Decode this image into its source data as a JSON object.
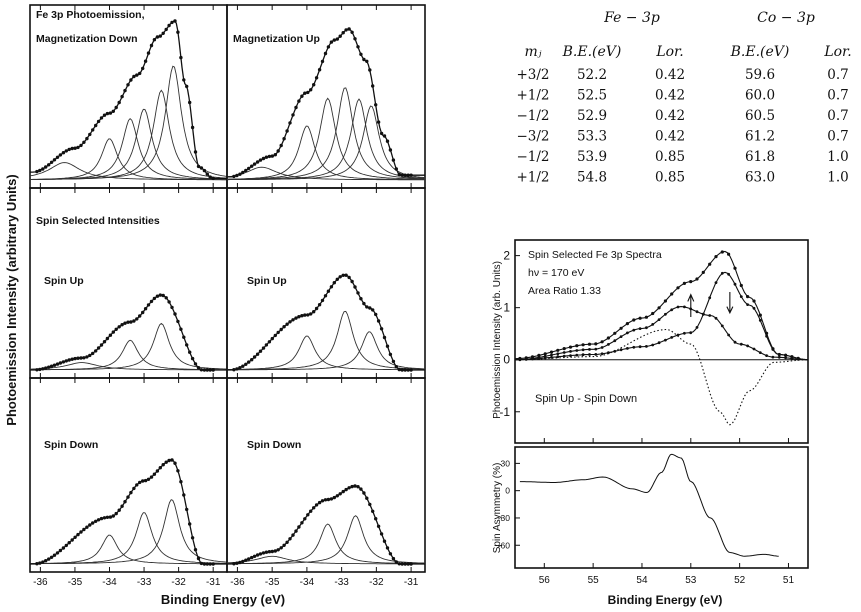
{
  "left_figure": {
    "ylabel": "Photoemission Intensity (arbitrary Units)",
    "xlabel": "Binding Energy (eV)",
    "xticks": [
      "-36",
      "-35",
      "-34",
      "-33",
      "-32",
      "-31"
    ],
    "panel_labels": {
      "top_left": [
        "Fe 3p Photoemission,",
        "Magnetization Down"
      ],
      "top_right": "Magnetization Up",
      "mid_left_header": "Spin Selected Intensities",
      "mid_left": "Spin Up",
      "mid_right": "Spin Up",
      "bot_left": "Spin Down",
      "bot_right": "Spin Down"
    }
  },
  "table": {
    "group_headers": [
      "Fe − 3p",
      "Co − 3p"
    ],
    "col_headers": [
      "mⱼ",
      "B.E.(eV)",
      "Lor.",
      "B.E.(eV)",
      "Lor."
    ],
    "rows": [
      [
        "+3/2",
        "52.2",
        "0.42",
        "59.6",
        "0.7"
      ],
      [
        "+1/2",
        "52.5",
        "0.42",
        "60.0",
        "0.7"
      ],
      [
        "−1/2",
        "52.9",
        "0.42",
        "60.5",
        "0.7"
      ],
      [
        "−3/2",
        "53.3",
        "0.42",
        "61.2",
        "0.7"
      ],
      [
        "−1/2",
        "53.9",
        "0.85",
        "61.8",
        "1.0"
      ],
      [
        "+1/2",
        "54.8",
        "0.85",
        "63.0",
        "1.0"
      ]
    ]
  },
  "right_figure": {
    "top_labels": [
      "Spin Selected Fe 3p Spectra",
      "hν = 170 eV",
      "Area Ratio 1.33"
    ],
    "diff_label": "Spin Up - Spin Down",
    "top_ylabel": "Photoemission Intensity (arb. Units)",
    "bottom_ylabel": "Spin Asymmetry (%)",
    "xlabel": "Binding Energy (eV)",
    "top_yticks": [
      "2",
      "1",
      "0",
      "-1"
    ],
    "bottom_yticks": [
      "30",
      "0",
      "-30",
      "-60"
    ],
    "xticks": [
      "56",
      "55",
      "54",
      "53",
      "52",
      "51"
    ]
  },
  "chart_data": [
    {
      "type": "line",
      "title": "Fe 3p Photoemission, Magnetization Down",
      "x_range": [
        -36.3,
        -30.6
      ],
      "series": [
        {
          "values": [
            [
              -36.2,
              0.05
            ],
            [
              -35,
              0.2
            ],
            [
              -34,
              0.42
            ],
            [
              -33.2,
              0.66
            ],
            [
              -32.6,
              0.9
            ],
            [
              -32.1,
              1.0
            ],
            [
              -31.8,
              0.6
            ],
            [
              -31.4,
              0.08
            ],
            [
              -31.0,
              0.01
            ]
          ]
        }
      ],
      "component_peaks_eV": [
        -35.3,
        -34.0,
        -33.4,
        -33.0,
        -32.5,
        -32.15
      ]
    },
    {
      "type": "line",
      "title": "Magnetization Up",
      "x_range": [
        -36.3,
        -30.6
      ],
      "series": [
        {
          "values": [
            [
              -36.2,
              0.02
            ],
            [
              -35,
              0.15
            ],
            [
              -34,
              0.55
            ],
            [
              -33.2,
              0.88
            ],
            [
              -32.8,
              0.95
            ],
            [
              -32.3,
              0.75
            ],
            [
              -31.8,
              0.28
            ],
            [
              -31.3,
              0.03
            ]
          ]
        }
      ],
      "component_peaks_eV": [
        -35.3,
        -34.0,
        -33.4,
        -32.9,
        -32.5,
        -32.15
      ]
    },
    {
      "type": "line",
      "title": "Spin Up (Magnetization Down)",
      "series": [
        {
          "values": [
            [
              -36.2,
              0.0
            ],
            [
              -34.8,
              0.12
            ],
            [
              -33.4,
              0.48
            ],
            [
              -32.5,
              0.75
            ],
            [
              -31.3,
              0.0
            ]
          ]
        }
      ],
      "component_peaks_eV": [
        -34.8,
        -33.4,
        -32.5
      ]
    },
    {
      "type": "line",
      "title": "Spin Up (Magnetization Up)",
      "series": [
        {
          "values": [
            [
              -36.2,
              0.0
            ],
            [
              -34.0,
              0.55
            ],
            [
              -32.9,
              0.95
            ],
            [
              -32.2,
              0.62
            ],
            [
              -31.3,
              0.0
            ]
          ]
        }
      ],
      "component_peaks_eV": [
        -34.0,
        -32.9,
        -32.2
      ]
    },
    {
      "type": "line",
      "title": "Spin Down (Magnetization Down)",
      "series": [
        {
          "values": [
            [
              -36.2,
              0.0
            ],
            [
              -34.0,
              0.45
            ],
            [
              -33.0,
              0.8
            ],
            [
              -32.2,
              1.0
            ],
            [
              -31.3,
              0.0
            ]
          ]
        }
      ],
      "component_peaks_eV": [
        -34.0,
        -33.0,
        -32.2
      ]
    },
    {
      "type": "line",
      "title": "Spin Down (Magnetization Up)",
      "series": [
        {
          "values": [
            [
              -36.2,
              0.0
            ],
            [
              -35.0,
              0.12
            ],
            [
              -33.4,
              0.62
            ],
            [
              -32.6,
              0.75
            ],
            [
              -31.3,
              0.0
            ]
          ]
        }
      ],
      "component_peaks_eV": [
        -35.0,
        -33.4,
        -32.6
      ]
    },
    {
      "type": "line",
      "title": "Spin Selected Fe 3p Spectra",
      "xlabel": "Binding Energy (eV)",
      "ylabel": "Photoemission Intensity (arb. Units)",
      "x_range": [
        56.6,
        50.6
      ],
      "ylim": [
        -1.6,
        2.3
      ],
      "series": [
        {
          "values": [
            [
              56.6,
              0.02
            ],
            [
              55,
              0.3
            ],
            [
              54,
              0.8
            ],
            [
              53,
              1.5
            ],
            [
              52.3,
              2.08
            ],
            [
              51.8,
              1.2
            ],
            [
              51.2,
              0.1
            ],
            [
              50.6,
              0.0
            ]
          ]
        },
        {
          "values": [
            [
              56.6,
              0.0
            ],
            [
              55,
              0.2
            ],
            [
              54,
              0.6
            ],
            [
              53.2,
              1.02
            ],
            [
              52.6,
              0.85
            ],
            [
              52,
              0.3
            ],
            [
              51.3,
              0.05
            ],
            [
              50.6,
              0.0
            ]
          ]
        },
        {
          "values": [
            [
              56.6,
              0.0
            ],
            [
              55,
              0.1
            ],
            [
              54,
              0.25
            ],
            [
              53,
              0.52
            ],
            [
              52.3,
              1.68
            ],
            [
              51.8,
              1.05
            ],
            [
              51.2,
              0.1
            ],
            [
              50.6,
              0.0
            ]
          ]
        },
        {
          "values": [
            [
              56.6,
              0.0
            ],
            [
              55,
              0.06
            ],
            [
              53.5,
              0.58
            ],
            [
              53,
              0.3
            ],
            [
              52.4,
              -1.0
            ],
            [
              52.2,
              -1.25
            ],
            [
              51.8,
              -0.6
            ],
            [
              51.3,
              -0.05
            ],
            [
              50.6,
              0.0
            ]
          ]
        }
      ]
    },
    {
      "type": "line",
      "xlabel": "Binding Energy (eV)",
      "ylabel": "Spin Asymmetry (%)",
      "x_range": [
        56.6,
        50.6
      ],
      "ylim": [
        -85,
        48
      ],
      "series": [
        {
          "values": [
            [
              56.5,
              10
            ],
            [
              55.8,
              9
            ],
            [
              55.2,
              12
            ],
            [
              54.8,
              15
            ],
            [
              54.2,
              2
            ],
            [
              53.9,
              -2
            ],
            [
              53.6,
              20
            ],
            [
              53.4,
              40
            ],
            [
              53.2,
              36
            ],
            [
              53.0,
              10
            ],
            [
              52.6,
              -30
            ],
            [
              52.2,
              -68
            ],
            [
              51.9,
              -72
            ],
            [
              51.5,
              -70
            ],
            [
              51.2,
              -72
            ]
          ]
        }
      ]
    }
  ]
}
